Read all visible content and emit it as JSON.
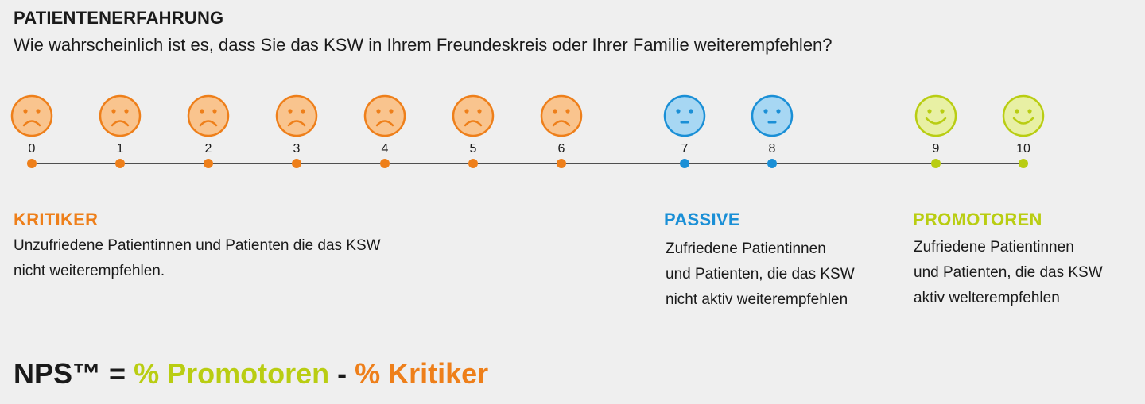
{
  "title": "PATIENTENERFAHRUNG",
  "question": "Wie wahrscheinlich ist es, dass Sie das KSW in Ihrem Freundeskreis oder Ihrer Familie weiterempfehlen?",
  "scale": {
    "points": [
      {
        "label": "0",
        "category": "kritiker",
        "face": "sad-face-icon"
      },
      {
        "label": "1",
        "category": "kritiker",
        "face": "sad-face-icon"
      },
      {
        "label": "2",
        "category": "kritiker",
        "face": "sad-face-icon"
      },
      {
        "label": "3",
        "category": "kritiker",
        "face": "sad-face-icon"
      },
      {
        "label": "4",
        "category": "kritiker",
        "face": "sad-face-icon"
      },
      {
        "label": "5",
        "category": "kritiker",
        "face": "sad-face-icon"
      },
      {
        "label": "6",
        "category": "kritiker",
        "face": "sad-face-icon"
      },
      {
        "label": "7",
        "category": "passive",
        "face": "neutral-face-icon"
      },
      {
        "label": "8",
        "category": "passive",
        "face": "neutral-face-icon"
      },
      {
        "label": "9",
        "category": "promotoren",
        "face": "happy-face-icon"
      },
      {
        "label": "10",
        "category": "promotoren",
        "face": "happy-face-icon"
      }
    ]
  },
  "colors": {
    "kritiker": {
      "main": "#ee7f1a",
      "fill": "#f9c48e"
    },
    "passive": {
      "main": "#1a8fd6",
      "fill": "#a7d7f3"
    },
    "promotoren": {
      "main": "#b9cd12",
      "fill": "#e8f0a4"
    },
    "line": "#1a1a1a"
  },
  "groups": {
    "kritiker": {
      "heading": "KRITIKER",
      "line1": "Unzufriedene Patientinnen und Patienten die das KSW",
      "line2": "nicht weiterempfehlen."
    },
    "passive": {
      "heading": "PASSIVE",
      "line1": "Zufriedene Patientinnen",
      "line2": "und Patienten, die das KSW",
      "line3": "nicht aktiv weiterempfehlen"
    },
    "promotoren": {
      "heading": "PROMOTOREN",
      "line1": "Zufriedene Patientinnen",
      "line2": "und Patienten, die das KSW",
      "line3": "aktiv welterempfehlen"
    }
  },
  "formula": {
    "lhs": "NPS™ = ",
    "promotoren": "% Promotoren",
    "minus": " - ",
    "kritiker": "% Kritiker"
  }
}
